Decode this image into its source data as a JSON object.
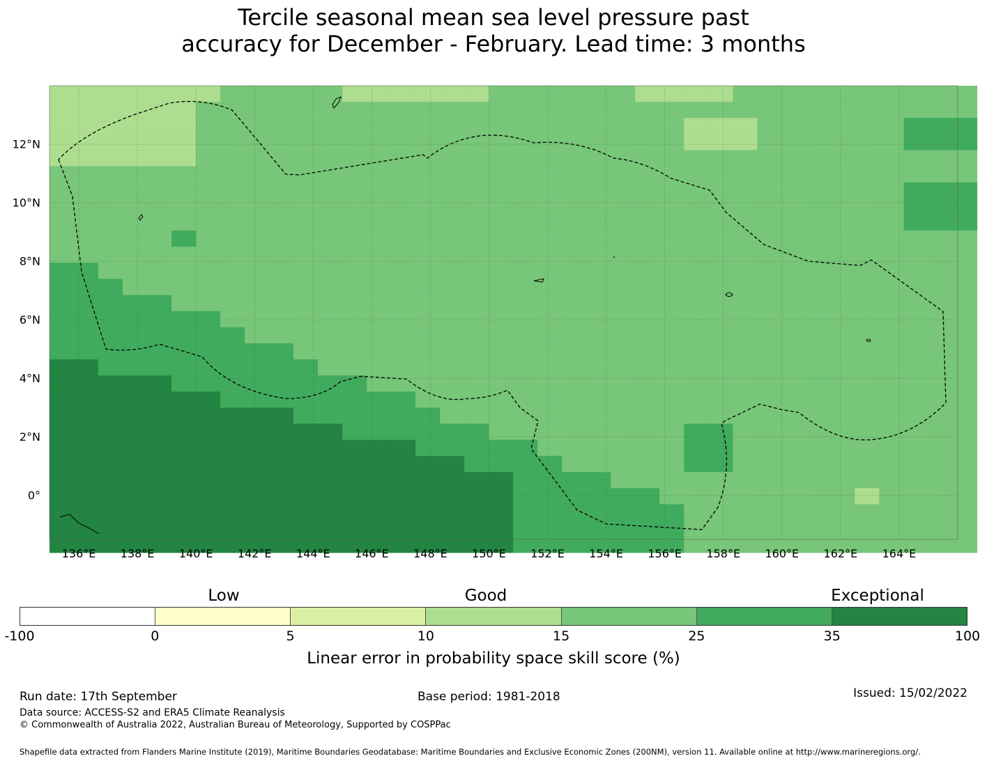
{
  "title": {
    "line1": "Tercile seasonal mean sea level pressure past",
    "line2": "accuracy for December - February. Lead time: 3 months"
  },
  "map": {
    "lon_labels": [
      "136°E",
      "138°E",
      "140°E",
      "142°E",
      "144°E",
      "146°E",
      "148°E",
      "150°E",
      "152°E",
      "154°E",
      "156°E",
      "158°E",
      "160°E",
      "162°E",
      "164°E"
    ],
    "lat_labels": [
      "12°N",
      "10°N",
      "8°N",
      "6°N",
      "4°N",
      "2°N",
      "0°"
    ],
    "lon_range": [
      135,
      166
    ],
    "lat_range": [
      -1.5,
      14
    ],
    "cell_deg_lon": 0.833,
    "cell_deg_lat": 0.55
  },
  "legend": {
    "categories": [
      "Low",
      "Good",
      "Exceptional"
    ],
    "ticks": [
      "-100",
      "0",
      "5",
      "10",
      "15",
      "25",
      "35",
      "100"
    ],
    "colors": [
      "#ffffff",
      "#ffffcc",
      "#d9f0a3",
      "#addd8e",
      "#78c679",
      "#41ab5d",
      "#238443"
    ],
    "label": "Linear error in probability space skill score (%)"
  },
  "footer": {
    "run_date": "Run date: 17th September",
    "base_period": "Base period: 1981-2018",
    "issued": "Issued: 15/02/2022",
    "data_source": "Data source: ACCESS-S2 and ERA5 Climate Reanalysis",
    "copyright": "© Commonwealth of Australia 2022, Australian Bureau of Meteorology, Supported by COSPPac",
    "shapefile": "Shapefile data extracted from Flanders Marine Institute (2019), Maritime Boundaries Geodatabase: Maritime Boundaries and Exclusive Economic Zones (200NM), version 11. Available online at http://www.marineregions.org/."
  }
}
